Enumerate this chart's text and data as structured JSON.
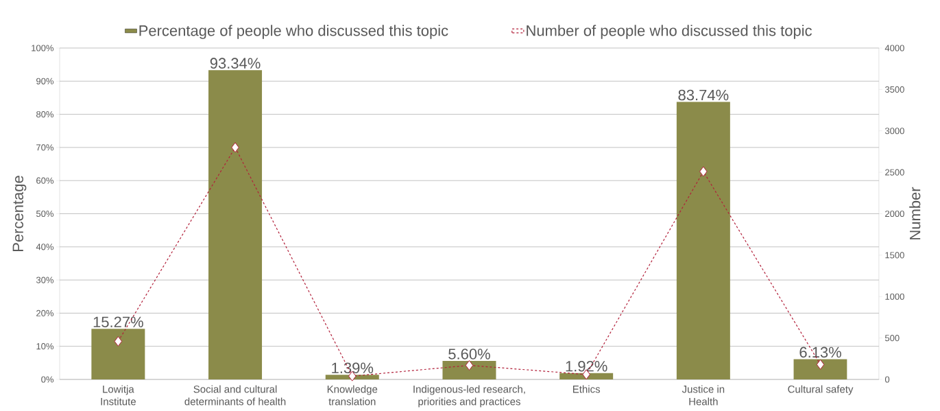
{
  "chart_data": {
    "type": "bar",
    "categories": [
      "Lowitja Institute",
      "Social and cultural determinants of health",
      "Knowledge translation",
      "Indigenous-led research, priorities and practices",
      "Ethics",
      "Justice in Health",
      "Cultural safety"
    ],
    "series": [
      {
        "name": "Percentage of people who discussed this topic",
        "color": "#8b8b4a",
        "values": [
          15.27,
          93.34,
          1.39,
          5.6,
          1.92,
          83.74,
          6.13
        ],
        "value_labels": [
          "15.27%",
          "93.34%",
          "1.39%",
          "5.60%",
          "1.92%",
          "83.74%",
          "6.13%"
        ]
      },
      {
        "name": "Number of people who discussed this topic",
        "type": "line",
        "axis": "y2",
        "color": "#b2203a",
        "marker": "diamond",
        "line_style": "dashed",
        "values": [
          460,
          2800,
          40,
          170,
          60,
          2510,
          180
        ]
      }
    ],
    "ylabel": "Percentage",
    "y2label": "Number",
    "ylim": [
      0,
      100
    ],
    "yticks": [
      {
        "value": 0,
        "label": "0%"
      },
      {
        "value": 10,
        "label": "10%"
      },
      {
        "value": 20,
        "label": "20%"
      },
      {
        "value": 30,
        "label": "30%"
      },
      {
        "value": 40,
        "label": "40%"
      },
      {
        "value": 50,
        "label": "50%"
      },
      {
        "value": 60,
        "label": "60%"
      },
      {
        "value": 70,
        "label": "70%"
      },
      {
        "value": 80,
        "label": "80%"
      },
      {
        "value": 90,
        "label": "90%"
      },
      {
        "value": 100,
        "label": "100%"
      }
    ],
    "y2lim": [
      0,
      4000
    ],
    "y2ticks": [
      0,
      500,
      1000,
      1500,
      2000,
      2500,
      3000,
      3500,
      4000
    ],
    "grid": "y",
    "legend": "top"
  }
}
